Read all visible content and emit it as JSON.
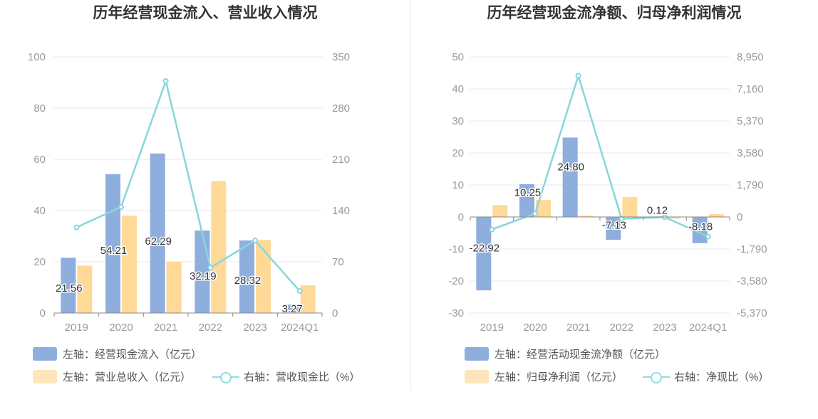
{
  "colors": {
    "inflow": "#8eaedd",
    "revenue": "#ffd998",
    "ratio": "#86d7d9",
    "grid": "#e4e7ef",
    "axis": "#999999"
  },
  "chart_data": [
    {
      "type": "bar",
      "title": "历年经营现金流入、营业收入情况",
      "categories": [
        "2019",
        "2020",
        "2021",
        "2022",
        "2023",
        "2024Q1"
      ],
      "y_left": {
        "min": 0,
        "max": 100,
        "ticks": [
          "0",
          "20",
          "40",
          "60",
          "80",
          "100"
        ]
      },
      "y_right": {
        "min": 0,
        "max": 350,
        "ticks": [
          "0",
          "70",
          "140",
          "210",
          "280",
          "350"
        ]
      },
      "series": [
        {
          "name": "左轴：经营现金流入（亿元）",
          "axis": "left",
          "kind": "bar",
          "values": [
            21.56,
            54.21,
            62.29,
            32.19,
            28.32,
            3.27
          ],
          "labels": [
            "21.56",
            "54.21",
            "62.29",
            "32.19",
            "28.32",
            "3.27"
          ]
        },
        {
          "name": "左轴：营业总收入（亿元）",
          "axis": "left",
          "kind": "bar",
          "values": [
            18.5,
            38,
            20,
            51.5,
            28.5,
            10.8
          ]
        },
        {
          "name": "右轴：营收现金比（%）",
          "axis": "right",
          "kind": "line",
          "values": [
            117,
            145,
            317,
            62,
            99,
            30
          ]
        }
      ]
    },
    {
      "type": "bar",
      "title": "历年经营现金流净额、归母净利润情况",
      "categories": [
        "2019",
        "2020",
        "2021",
        "2022",
        "2023",
        "2024Q1"
      ],
      "y_left": {
        "min": -30,
        "max": 50,
        "ticks": [
          "-30",
          "-20",
          "-10",
          "0",
          "10",
          "20",
          "30",
          "40",
          "50"
        ]
      },
      "y_right": {
        "min": -5370,
        "max": 8950,
        "ticks": [
          "-5,370",
          "-3,580",
          "-1,790",
          "0",
          "1,790",
          "3,580",
          "5,370",
          "7,160",
          "8,950"
        ]
      },
      "series": [
        {
          "name": "左轴：经营活动现金流净额（亿元）",
          "axis": "left",
          "kind": "bar",
          "values": [
            -22.92,
            10.25,
            24.8,
            -7.13,
            0.12,
            -8.18
          ],
          "labels": [
            "-22.92",
            "10.25",
            "24.80",
            "-7.13",
            "0.12",
            "-8.18"
          ]
        },
        {
          "name": "左轴：归母净利润（亿元）",
          "axis": "left",
          "kind": "bar",
          "values": [
            3.7,
            5.3,
            0.4,
            6.2,
            -0.5,
            0.9
          ]
        },
        {
          "name": "右轴：净现比（%）",
          "axis": "right",
          "kind": "line",
          "values": [
            -700,
            190,
            7900,
            -100,
            -10,
            -1100
          ]
        }
      ]
    }
  ]
}
